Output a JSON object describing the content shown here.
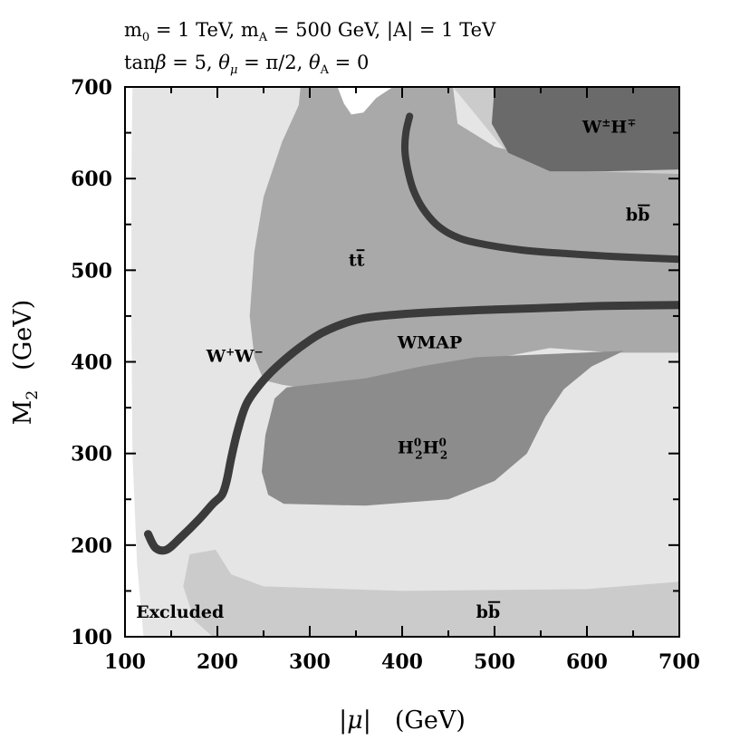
{
  "chart_data": {
    "type": "region-contour",
    "title_lines": [
      "m₀ = 1 TeV,  mₐ = 500 GeV,  |A| = 1 TeV",
      "tanβ = 5,  θμ = π/2,  θₐ = 0"
    ],
    "title_parts": {
      "line1": {
        "m0": "m",
        "m0_sub": "0",
        "m0_val": " = 1 TeV,  ",
        "mA": "m",
        "mA_sub": "A",
        "mA_val": " = 500 GeV,  |A| = 1 TeV"
      },
      "line2": {
        "tanb": "tan",
        "beta": "β",
        "tanb_val": " = 5,  ",
        "theta": "θ",
        "mu_sub": "μ",
        "thetamu_val": " = π/2,  ",
        "theta2": "θ",
        "A_sub": "A",
        "thetaA_val": " = 0"
      }
    },
    "xlabel": "|μ|   (GeV)",
    "ylabel": "M₂   (GeV)",
    "xlabel_parts": {
      "main": "|μ|",
      "units": "(GeV)"
    },
    "ylabel_parts": {
      "main": "M",
      "sub": "2",
      "units": "(GeV)"
    },
    "xlim": [
      100,
      700
    ],
    "ylim": [
      100,
      700
    ],
    "x_ticks": [
      100,
      200,
      300,
      400,
      500,
      600,
      700
    ],
    "y_ticks": [
      100,
      200,
      300,
      400,
      500,
      600,
      700
    ],
    "x_tick_labels": [
      "100",
      "200",
      "300",
      "400",
      "500",
      "600",
      "700"
    ],
    "y_tick_labels": [
      "100",
      "200",
      "300",
      "400",
      "500",
      "600",
      "700"
    ],
    "minor_tick_step": 50,
    "colors": {
      "background": "#ffffff",
      "ww_region": "#e5e5e5",
      "bb_region": "#cbcbcb",
      "tt_region": "#a9a9a9",
      "h2h2_region": "#8c8c8c",
      "wh_region": "#6a6a6a",
      "wmap_band": "#3b3b3b",
      "axes": "#000000"
    },
    "regions": [
      {
        "name": "W+W-",
        "fill_key": "ww_region",
        "points": [
          [
            108,
            700
          ],
          [
            700,
            700
          ],
          [
            700,
            100
          ],
          [
            120,
            100
          ],
          [
            113,
            180
          ],
          [
            108,
            300
          ],
          [
            107,
            450
          ],
          [
            107,
            600
          ]
        ]
      },
      {
        "name": "bb-low",
        "fill_key": "bb_region",
        "points": [
          [
            700,
            160
          ],
          [
            700,
            100
          ],
          [
            195,
            100
          ],
          [
            175,
            118
          ],
          [
            163,
            155
          ],
          [
            170,
            190
          ],
          [
            198,
            195
          ],
          [
            215,
            168
          ],
          [
            250,
            155
          ],
          [
            400,
            150
          ],
          [
            600,
            152
          ]
        ]
      },
      {
        "name": "bb-upper",
        "fill_key": "bb_region",
        "points": [
          [
            455,
            700
          ],
          [
            700,
            700
          ],
          [
            700,
            420
          ],
          [
            640,
            425
          ],
          [
            560,
            432
          ],
          [
            520,
            438
          ],
          [
            470,
            445
          ],
          [
            440,
            520
          ],
          [
            455,
            550
          ],
          [
            500,
            600
          ],
          [
            520,
            620
          ]
        ]
      },
      {
        "name": "t-tbar",
        "fill_key": "tt_region",
        "points": [
          [
            290,
            700
          ],
          [
            455,
            700
          ],
          [
            460,
            660
          ],
          [
            500,
            635
          ],
          [
            600,
            608
          ],
          [
            700,
            605
          ],
          [
            700,
            410
          ],
          [
            630,
            410
          ],
          [
            560,
            415
          ],
          [
            480,
            400
          ],
          [
            420,
            395
          ],
          [
            360,
            380
          ],
          [
            300,
            370
          ],
          [
            270,
            375
          ],
          [
            250,
            380
          ],
          [
            240,
            405
          ],
          [
            235,
            450
          ],
          [
            240,
            520
          ],
          [
            250,
            580
          ],
          [
            270,
            640
          ],
          [
            288,
            680
          ]
        ]
      },
      {
        "name": "H2H2",
        "fill_key": "h2h2_region",
        "points": [
          [
            255,
            255
          ],
          [
            272,
            245
          ],
          [
            360,
            243
          ],
          [
            450,
            250
          ],
          [
            500,
            270
          ],
          [
            535,
            300
          ],
          [
            555,
            340
          ],
          [
            575,
            370
          ],
          [
            605,
            395
          ],
          [
            640,
            412
          ],
          [
            480,
            405
          ],
          [
            420,
            395
          ],
          [
            360,
            382
          ],
          [
            300,
            375
          ],
          [
            275,
            372
          ],
          [
            262,
            360
          ],
          [
            252,
            320
          ],
          [
            248,
            280
          ]
        ]
      },
      {
        "name": "W+H-",
        "fill_key": "wh_region",
        "points": [
          [
            500,
            700
          ],
          [
            700,
            700
          ],
          [
            700,
            610
          ],
          [
            620,
            608
          ],
          [
            560,
            608
          ],
          [
            515,
            628
          ],
          [
            497,
            660
          ]
        ]
      },
      {
        "name": "white-notch",
        "fill_key": "background",
        "points": [
          [
            330,
            700
          ],
          [
            390,
            700
          ],
          [
            372,
            688
          ],
          [
            358,
            672
          ],
          [
            345,
            670
          ],
          [
            337,
            682
          ]
        ]
      }
    ],
    "curves": [
      {
        "name": "WMAP-lower",
        "stroke_key": "wmap_band",
        "width": 9,
        "points": [
          [
            125,
            212
          ],
          [
            133,
            197
          ],
          [
            145,
            195
          ],
          [
            160,
            208
          ],
          [
            180,
            228
          ],
          [
            195,
            245
          ],
          [
            205,
            255
          ],
          [
            210,
            270
          ],
          [
            215,
            295
          ],
          [
            222,
            325
          ],
          [
            232,
            355
          ],
          [
            250,
            380
          ],
          [
            270,
            400
          ],
          [
            295,
            420
          ],
          [
            320,
            435
          ],
          [
            355,
            447
          ],
          [
            400,
            452
          ],
          [
            450,
            455
          ],
          [
            500,
            457
          ],
          [
            560,
            459
          ],
          [
            620,
            461
          ],
          [
            700,
            462
          ]
        ]
      },
      {
        "name": "WMAP-upper",
        "stroke_key": "wmap_band",
        "width": 8,
        "points": [
          [
            408,
            668
          ],
          [
            404,
            650
          ],
          [
            403,
            630
          ],
          [
            406,
            610
          ],
          [
            412,
            588
          ],
          [
            422,
            568
          ],
          [
            437,
            550
          ],
          [
            455,
            538
          ],
          [
            480,
            530
          ],
          [
            530,
            522
          ],
          [
            580,
            518
          ],
          [
            630,
            515
          ],
          [
            700,
            512
          ]
        ]
      }
    ],
    "annotations": [
      {
        "id": "label-ww",
        "text_main": "W",
        "sup1": "+",
        "text2": "W",
        "sup2": "−",
        "x": 188,
        "y": 400
      },
      {
        "id": "label-tt",
        "text_main": "t",
        "text_bar": "t",
        "x": 342,
        "y": 505
      },
      {
        "id": "label-wmap",
        "text": "WMAP",
        "x": 395,
        "y": 415
      },
      {
        "id": "label-h2h2",
        "text_main": "H",
        "sub1": "2",
        "sup1": "0",
        "text2": "H",
        "sub2": "2",
        "sup2": "0",
        "x": 395,
        "y": 300
      },
      {
        "id": "label-wh",
        "text_main": "W",
        "sup1": "±",
        "text2": "H",
        "sup2": "∓",
        "x": 595,
        "y": 650
      },
      {
        "id": "label-bb-upper",
        "text_main": "b",
        "text_bar": "b",
        "x": 642,
        "y": 554
      },
      {
        "id": "label-bb-lower",
        "text_main": "b",
        "text_bar": "b",
        "x": 480,
        "y": 121
      },
      {
        "id": "label-excluded",
        "text": "Excluded",
        "x": 112,
        "y": 121
      }
    ]
  }
}
